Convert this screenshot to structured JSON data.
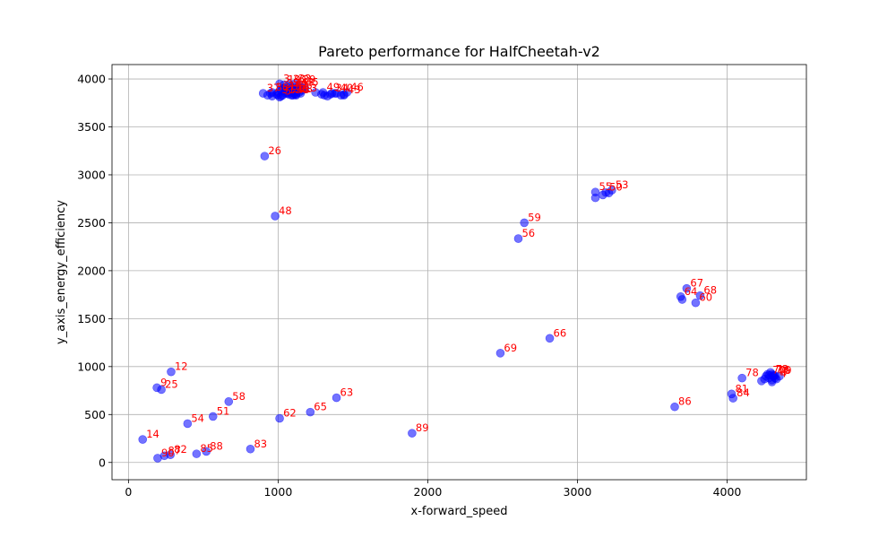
{
  "chart_data": {
    "type": "scatter",
    "title": "Pareto performance for HalfCheetah-v2",
    "xlabel": "x-forward_speed",
    "ylabel": "y_axis_energy_efficiency",
    "xlim": [
      -110,
      4530
    ],
    "ylim": [
      -180,
      4150
    ],
    "xticks": [
      0,
      1000,
      2000,
      3000,
      4000
    ],
    "yticks": [
      0,
      500,
      1000,
      1500,
      2000,
      2500,
      3000,
      3500,
      4000
    ],
    "grid": true,
    "point_color": "#0000ff",
    "point_opacity": 0.55,
    "label_color": "#ff0000",
    "points": [
      {
        "label": "37",
        "x": 900,
        "y": 3850
      },
      {
        "label": "",
        "x": 930,
        "y": 3830
      },
      {
        "label": "",
        "x": 960,
        "y": 3820
      },
      {
        "label": "",
        "x": 990,
        "y": 3840
      },
      {
        "label": "",
        "x": 1010,
        "y": 3810
      },
      {
        "label": "",
        "x": 1030,
        "y": 3830
      },
      {
        "label": "",
        "x": 1050,
        "y": 3850
      },
      {
        "label": "",
        "x": 1070,
        "y": 3870
      },
      {
        "label": "",
        "x": 1090,
        "y": 3860
      },
      {
        "label": "",
        "x": 1110,
        "y": 3840
      },
      {
        "label": "",
        "x": 1130,
        "y": 3880
      },
      {
        "label": "",
        "x": 1150,
        "y": 3900
      },
      {
        "label": "",
        "x": 1060,
        "y": 3890
      },
      {
        "label": "",
        "x": 1100,
        "y": 3910
      },
      {
        "label": "",
        "x": 1120,
        "y": 3830
      },
      {
        "label": "",
        "x": 1000,
        "y": 3860
      },
      {
        "label": "",
        "x": 1020,
        "y": 3880
      },
      {
        "label": "",
        "x": 1040,
        "y": 3900
      },
      {
        "label": "",
        "x": 1080,
        "y": 3920
      },
      {
        "label": "",
        "x": 1140,
        "y": 3860
      },
      {
        "label": "",
        "x": 1160,
        "y": 3880
      },
      {
        "label": "",
        "x": 950,
        "y": 3850
      },
      {
        "label": "",
        "x": 1180,
        "y": 3900
      },
      {
        "label": "",
        "x": 1060,
        "y": 3850
      },
      {
        "label": "",
        "x": 1100,
        "y": 3870
      },
      {
        "label": "3",
        "x": 1010,
        "y": 3950
      },
      {
        "label": "19",
        "x": 1040,
        "y": 3940
      },
      {
        "label": "30",
        "x": 1075,
        "y": 3945
      },
      {
        "label": "33",
        "x": 1110,
        "y": 3950
      },
      {
        "label": "39",
        "x": 1140,
        "y": 3940
      },
      {
        "label": "35",
        "x": 1030,
        "y": 3900
      },
      {
        "label": "41",
        "x": 1090,
        "y": 3900
      },
      {
        "label": "43",
        "x": 1130,
        "y": 3910
      },
      {
        "label": "45",
        "x": 1160,
        "y": 3910
      },
      {
        "label": "15",
        "x": 1050,
        "y": 3870
      },
      {
        "label": "6",
        "x": 1110,
        "y": 3860
      },
      {
        "label": "13",
        "x": 1150,
        "y": 3850
      },
      {
        "label": "20",
        "x": 1070,
        "y": 3840
      },
      {
        "label": "23",
        "x": 1120,
        "y": 3840
      },
      {
        "label": "31",
        "x": 1000,
        "y": 3830
      },
      {
        "label": "5",
        "x": 1020,
        "y": 3820
      },
      {
        "label": "38",
        "x": 960,
        "y": 3860
      },
      {
        "label": "34",
        "x": 1090,
        "y": 3830
      },
      {
        "label": "2",
        "x": 1130,
        "y": 3880
      },
      {
        "label": "43",
        "x": 1100,
        "y": 3830
      },
      {
        "label": "",
        "x": 1250,
        "y": 3860
      },
      {
        "label": "",
        "x": 1290,
        "y": 3840
      },
      {
        "label": "",
        "x": 1310,
        "y": 3830
      },
      {
        "label": "",
        "x": 1330,
        "y": 3820
      },
      {
        "label": "",
        "x": 1350,
        "y": 3840
      },
      {
        "label": "",
        "x": 1380,
        "y": 3850
      },
      {
        "label": "",
        "x": 1420,
        "y": 3830
      },
      {
        "label": "",
        "x": 1440,
        "y": 3840
      },
      {
        "label": "49",
        "x": 1300,
        "y": 3860
      },
      {
        "label": "34",
        "x": 1360,
        "y": 3850
      },
      {
        "label": "40",
        "x": 1390,
        "y": 3850
      },
      {
        "label": "46",
        "x": 1460,
        "y": 3860
      },
      {
        "label": "43",
        "x": 1440,
        "y": 3830
      },
      {
        "label": "26",
        "x": 910,
        "y": 3195
      },
      {
        "label": "48",
        "x": 980,
        "y": 2570
      },
      {
        "label": "12",
        "x": 285,
        "y": 945
      },
      {
        "label": "9",
        "x": 190,
        "y": 780
      },
      {
        "label": "25",
        "x": 220,
        "y": 760
      },
      {
        "label": "54",
        "x": 395,
        "y": 405
      },
      {
        "label": "51",
        "x": 565,
        "y": 480
      },
      {
        "label": "58",
        "x": 670,
        "y": 635
      },
      {
        "label": "14",
        "x": 95,
        "y": 240
      },
      {
        "label": "90",
        "x": 195,
        "y": 45
      },
      {
        "label": "87",
        "x": 240,
        "y": 70
      },
      {
        "label": "82",
        "x": 280,
        "y": 80
      },
      {
        "label": "85",
        "x": 455,
        "y": 90
      },
      {
        "label": "88",
        "x": 520,
        "y": 115
      },
      {
        "label": "83",
        "x": 815,
        "y": 140
      },
      {
        "label": "62",
        "x": 1010,
        "y": 460
      },
      {
        "label": "65",
        "x": 1215,
        "y": 525
      },
      {
        "label": "63",
        "x": 1390,
        "y": 675
      },
      {
        "label": "89",
        "x": 1895,
        "y": 305
      },
      {
        "label": "69",
        "x": 2485,
        "y": 1140
      },
      {
        "label": "56",
        "x": 2605,
        "y": 2335
      },
      {
        "label": "59",
        "x": 2645,
        "y": 2500
      },
      {
        "label": "66",
        "x": 2815,
        "y": 1295
      },
      {
        "label": "55",
        "x": 3120,
        "y": 2820
      },
      {
        "label": "",
        "x": 3120,
        "y": 2760
      },
      {
        "label": "",
        "x": 3170,
        "y": 2790
      },
      {
        "label": "",
        "x": 3210,
        "y": 2810
      },
      {
        "label": "50",
        "x": 3190,
        "y": 2815
      },
      {
        "label": "53",
        "x": 3230,
        "y": 2840
      },
      {
        "label": "64",
        "x": 3690,
        "y": 1730
      },
      {
        "label": "",
        "x": 3700,
        "y": 1700
      },
      {
        "label": "67",
        "x": 3730,
        "y": 1815
      },
      {
        "label": "68",
        "x": 3820,
        "y": 1740
      },
      {
        "label": "60",
        "x": 3790,
        "y": 1665
      },
      {
        "label": "86",
        "x": 3650,
        "y": 580
      },
      {
        "label": "78",
        "x": 4100,
        "y": 880
      },
      {
        "label": "81",
        "x": 4030,
        "y": 715
      },
      {
        "label": "84",
        "x": 4040,
        "y": 670
      },
      {
        "label": "",
        "x": 4230,
        "y": 850
      },
      {
        "label": "",
        "x": 4250,
        "y": 870
      },
      {
        "label": "",
        "x": 4260,
        "y": 900
      },
      {
        "label": "",
        "x": 4280,
        "y": 880
      },
      {
        "label": "",
        "x": 4300,
        "y": 860
      },
      {
        "label": "",
        "x": 4270,
        "y": 920
      },
      {
        "label": "",
        "x": 4290,
        "y": 940
      },
      {
        "label": "",
        "x": 4310,
        "y": 900
      },
      {
        "label": "",
        "x": 4300,
        "y": 840
      },
      {
        "label": "",
        "x": 4320,
        "y": 880
      },
      {
        "label": "4",
        "x": 4330,
        "y": 870
      },
      {
        "label": "7",
        "x": 4350,
        "y": 900
      },
      {
        "label": "70",
        "x": 4280,
        "y": 910
      },
      {
        "label": "73",
        "x": 4300,
        "y": 920
      },
      {
        "label": "76",
        "x": 4310,
        "y": 910
      },
      {
        "label": "79",
        "x": 4320,
        "y": 905
      }
    ]
  }
}
